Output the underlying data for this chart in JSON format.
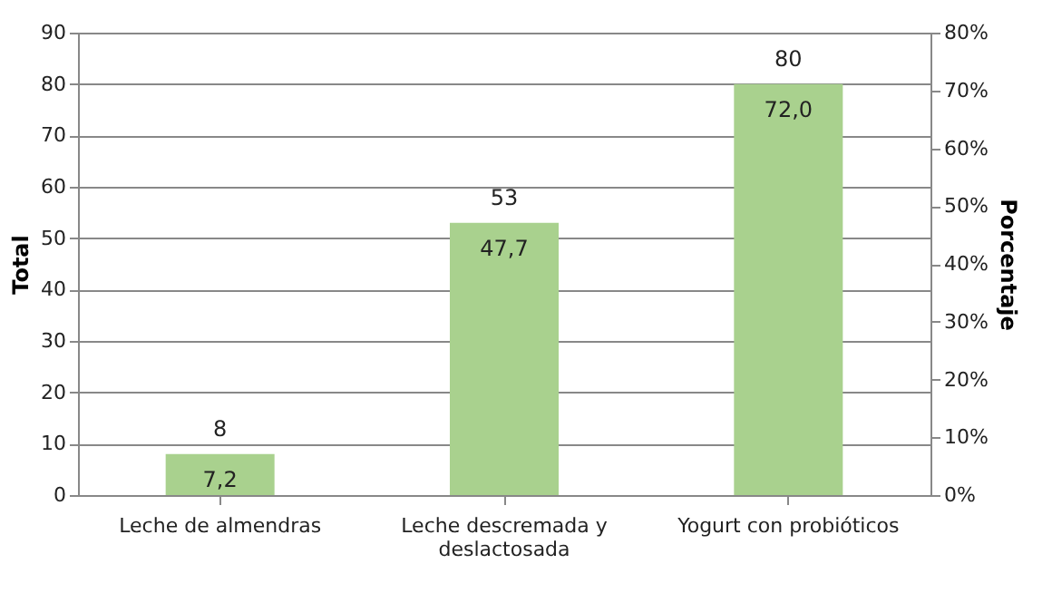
{
  "chart_data": {
    "type": "bar",
    "categories": [
      "Leche de almendras",
      "Leche descremada y deslactosada",
      "Yogurt con probióticos"
    ],
    "series": [
      {
        "color": "#a9d18e",
        "values": [
          8,
          53,
          80
        ],
        "value_labels": [
          "8",
          "53",
          "80"
        ]
      }
    ],
    "annotations": [
      {
        "text": "7,2",
        "x": "Leche de almendras",
        "y": 8
      },
      {
        "text": "47,7",
        "x": "Leche descremada y deslactosada",
        "y": 53
      },
      {
        "text": "72,0",
        "x": "Yogurt con probióticos",
        "y": 80
      }
    ],
    "ylabel": "Total",
    "y2label": "Porcentaje",
    "ylim": [
      0,
      90
    ],
    "yticks": [
      0,
      10,
      20,
      30,
      40,
      50,
      60,
      70,
      80,
      90
    ],
    "y2lim": [
      0,
      80
    ],
    "y2ticks": [
      {
        "value": 0,
        "label": "0%"
      },
      {
        "value": 10,
        "label": "10%"
      },
      {
        "value": 20,
        "label": "20%"
      },
      {
        "value": 30,
        "label": "30%"
      },
      {
        "value": 40,
        "label": "40%"
      },
      {
        "value": 50,
        "label": "50%"
      },
      {
        "value": 60,
        "label": "60%"
      },
      {
        "value": 70,
        "label": "70%"
      },
      {
        "value": 80,
        "label": "80%"
      }
    ],
    "grid": "y"
  }
}
